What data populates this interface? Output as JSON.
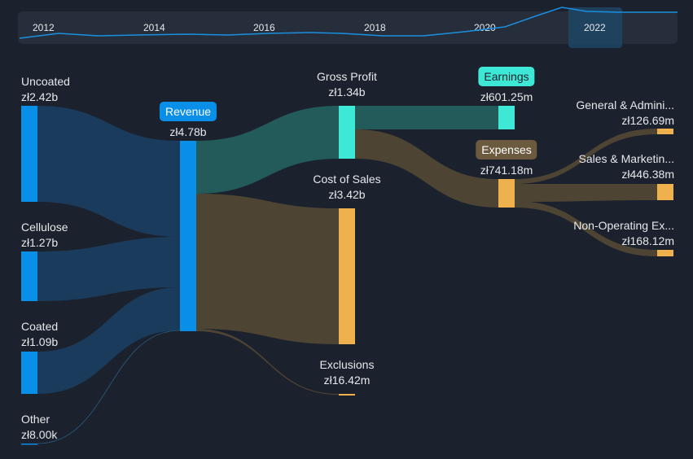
{
  "timeline": {
    "years": [
      "2012",
      "2014",
      "2016",
      "2018",
      "2020",
      "2022"
    ],
    "selected": "2022",
    "line_color": "#1a8fe0"
  },
  "chart_data": {
    "type": "sankey",
    "currency": "zł",
    "nodes": [
      {
        "id": "uncoated",
        "label": "Uncoated",
        "value": "zł2.42b",
        "color": "#0a8fe8"
      },
      {
        "id": "cellulose",
        "label": "Cellulose",
        "value": "zł1.27b",
        "color": "#0a8fe8"
      },
      {
        "id": "coated",
        "label": "Coated",
        "value": "zł1.09b",
        "color": "#0a8fe8"
      },
      {
        "id": "other",
        "label": "Other",
        "value": "zł8.00k",
        "color": "#0a8fe8"
      },
      {
        "id": "revenue",
        "label": "Revenue",
        "value": "zł4.78b",
        "color": "#0a8fe8"
      },
      {
        "id": "gross_profit",
        "label": "Gross Profit",
        "value": "zł1.34b",
        "color": "#3de8d6"
      },
      {
        "id": "cost_of_sales",
        "label": "Cost of Sales",
        "value": "zł3.42b",
        "color": "#efb04e"
      },
      {
        "id": "exclusions",
        "label": "Exclusions",
        "value": "zł16.42m",
        "color": "#efb04e"
      },
      {
        "id": "earnings",
        "label": "Earnings",
        "value": "zł601.25m",
        "color": "#3de8d6"
      },
      {
        "id": "expenses",
        "label": "Expenses",
        "value": "zł741.18m",
        "color": "#efb04e"
      },
      {
        "id": "gna",
        "label": "General & Admini...",
        "value": "zł126.69m",
        "color": "#efb04e"
      },
      {
        "id": "snm",
        "label": "Sales & Marketin...",
        "value": "zł446.38m",
        "color": "#efb04e"
      },
      {
        "id": "nonop",
        "label": "Non-Operating Ex...",
        "value": "zł168.12m",
        "color": "#efb04e"
      }
    ],
    "links": [
      {
        "source": "uncoated",
        "target": "revenue",
        "value_b": 2.42
      },
      {
        "source": "cellulose",
        "target": "revenue",
        "value_b": 1.27
      },
      {
        "source": "coated",
        "target": "revenue",
        "value_b": 1.09
      },
      {
        "source": "other",
        "target": "revenue",
        "value_b": 8e-06
      },
      {
        "source": "revenue",
        "target": "gross_profit",
        "value_b": 1.34
      },
      {
        "source": "revenue",
        "target": "cost_of_sales",
        "value_b": 3.42
      },
      {
        "source": "revenue",
        "target": "exclusions",
        "value_b": 0.01642
      },
      {
        "source": "gross_profit",
        "target": "earnings",
        "value_b": 0.60125
      },
      {
        "source": "gross_profit",
        "target": "expenses",
        "value_b": 0.74118
      },
      {
        "source": "expenses",
        "target": "gna",
        "value_b": 0.12669
      },
      {
        "source": "expenses",
        "target": "snm",
        "value_b": 0.44638
      },
      {
        "source": "expenses",
        "target": "nonop",
        "value_b": 0.16812
      }
    ],
    "link_colors": {
      "revenue_in": "#1a3b5c",
      "profit": "#235a5a",
      "cost": "#4e4434"
    }
  }
}
